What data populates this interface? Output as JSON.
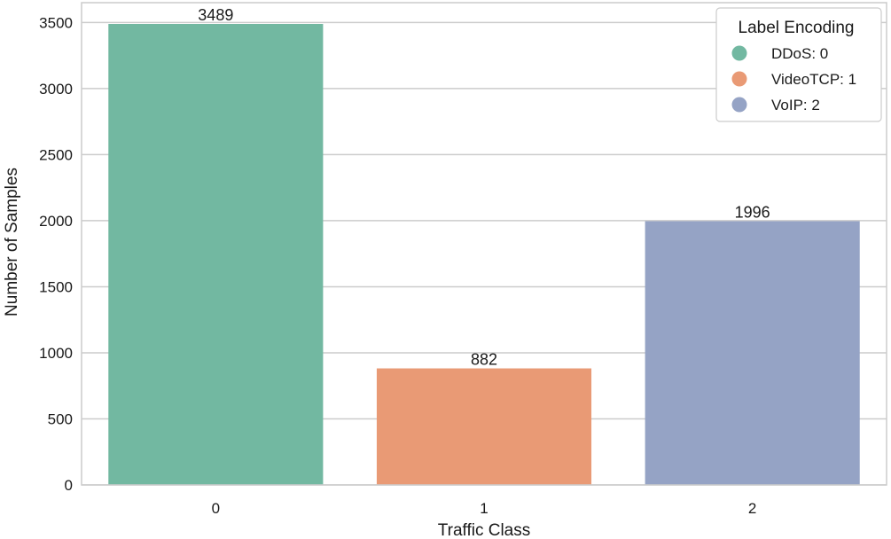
{
  "chart_data": {
    "type": "bar",
    "title": "",
    "xlabel": "Traffic Class",
    "ylabel": "Number of Samples",
    "categories": [
      "0",
      "1",
      "2"
    ],
    "values": [
      3489,
      882,
      1996
    ],
    "value_labels": [
      "3489",
      "882",
      "1996"
    ],
    "colors": [
      "#72b8a1",
      "#e99a75",
      "#95a3c5"
    ],
    "ylim": [
      0,
      3650
    ],
    "yticks": [
      0,
      500,
      1000,
      1500,
      2000,
      2500,
      3000,
      3500
    ],
    "grid": true,
    "legend": {
      "title": "Label Encoding",
      "placement": "top-right",
      "entries": [
        {
          "label": "DDoS: 0",
          "color": "#72b8a1"
        },
        {
          "label": "VideoTCP: 1",
          "color": "#e99a75"
        },
        {
          "label": "VoIP: 2",
          "color": "#95a3c5"
        }
      ]
    }
  }
}
